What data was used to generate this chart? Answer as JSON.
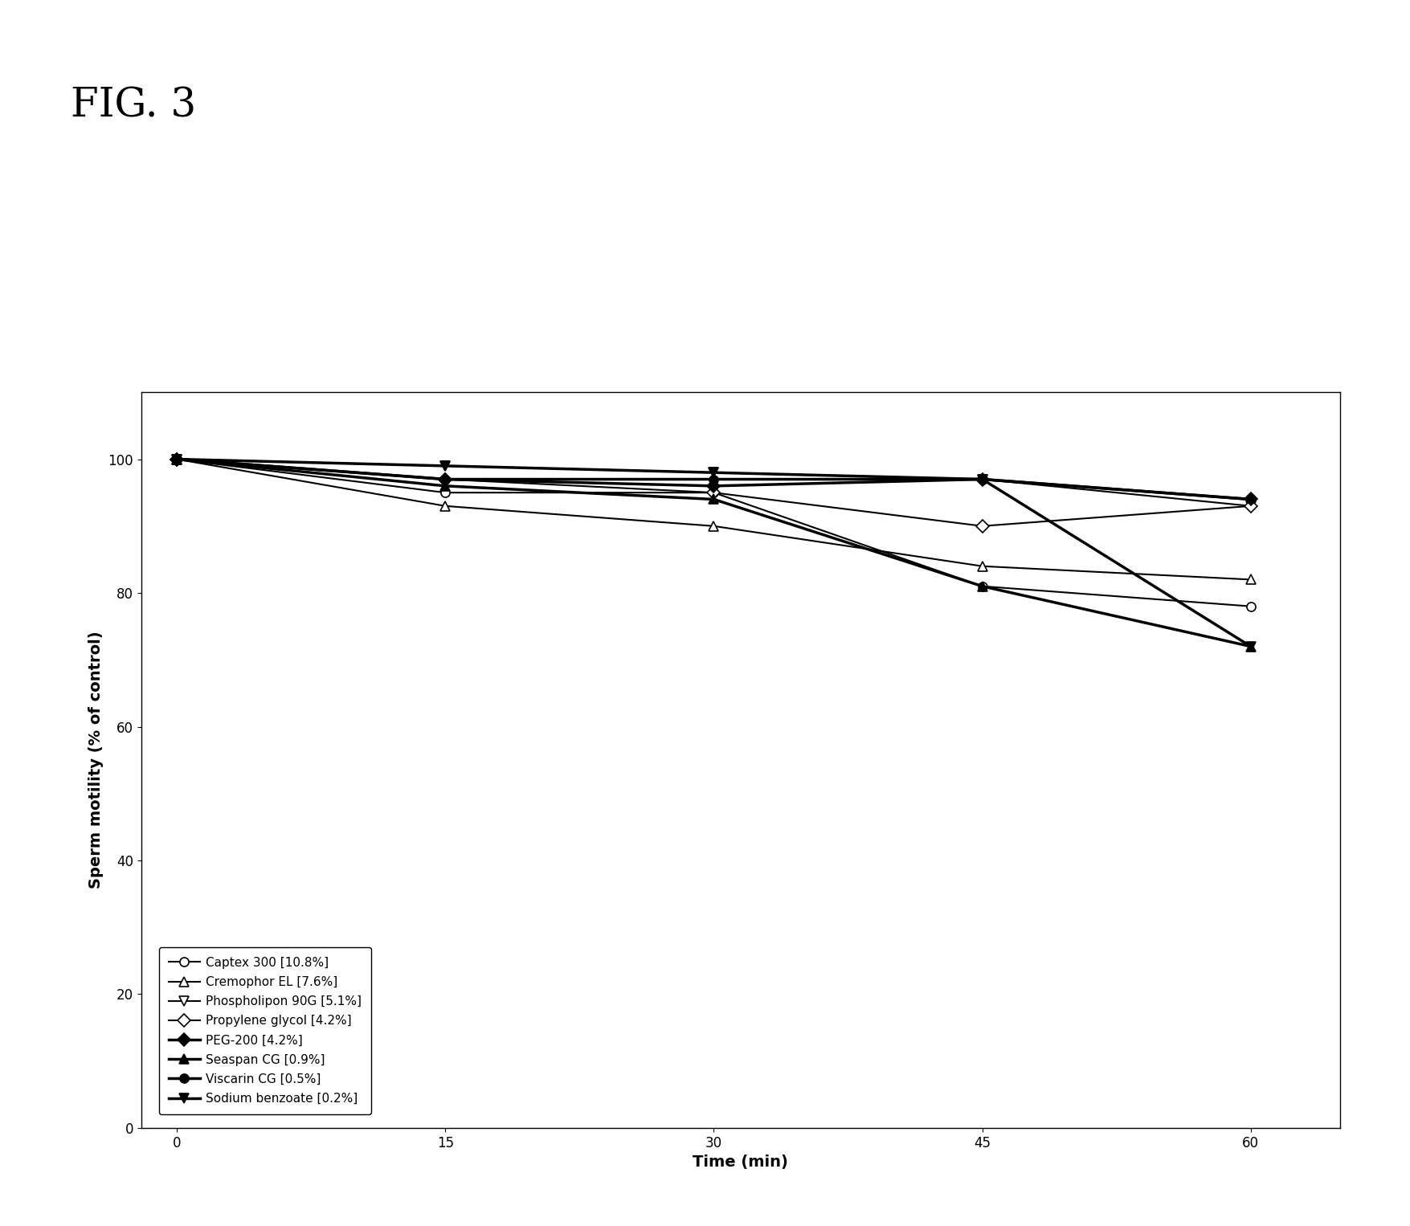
{
  "title": "FIG. 3",
  "xlabel": "Time (min)",
  "ylabel": "Sperm motility (% of control)",
  "x": [
    0,
    15,
    30,
    45,
    60
  ],
  "series": [
    {
      "label": "Captex 300 [10.8%]",
      "y": [
        100,
        95,
        95,
        81,
        78
      ],
      "marker": "o",
      "filled": false,
      "linewidth": 1.5
    },
    {
      "label": "Cremophor EL [7.6%]",
      "y": [
        100,
        93,
        90,
        84,
        82
      ],
      "marker": "^",
      "filled": false,
      "linewidth": 1.5
    },
    {
      "label": "Phospholipon 90G [5.1%]",
      "y": [
        100,
        99,
        98,
        97,
        93
      ],
      "marker": "v",
      "filled": false,
      "linewidth": 1.5
    },
    {
      "label": "Propylene glycol [4.2%]",
      "y": [
        100,
        97,
        95,
        90,
        93
      ],
      "marker": "D",
      "filled": false,
      "linewidth": 1.5
    },
    {
      "label": "PEG-200 [4.2%]",
      "y": [
        100,
        97,
        96,
        97,
        94
      ],
      "marker": "D",
      "filled": true,
      "linewidth": 2.5
    },
    {
      "label": "Seaspan CG [0.9%]",
      "y": [
        100,
        96,
        94,
        81,
        72
      ],
      "marker": "^",
      "filled": true,
      "linewidth": 2.5
    },
    {
      "label": "Viscarin CG [0.5%]",
      "y": [
        100,
        97,
        97,
        97,
        94
      ],
      "marker": "o",
      "filled": true,
      "linewidth": 2.5
    },
    {
      "label": "Sodium benzoate [0.2%]",
      "y": [
        100,
        99,
        98,
        97,
        72
      ],
      "marker": "v",
      "filled": true,
      "linewidth": 2.5
    }
  ],
  "xlim": [
    -2,
    65
  ],
  "ylim": [
    0,
    110
  ],
  "yticks": [
    0,
    20,
    40,
    60,
    80,
    100
  ],
  "xticks": [
    0,
    15,
    30,
    45,
    60
  ],
  "figsize": [
    17.56,
    15.26
  ],
  "dpi": 100,
  "background_color": "#ffffff",
  "text_color": "#000000",
  "marker_size": 8,
  "title_fontsize": 36,
  "axis_label_fontsize": 14,
  "tick_fontsize": 12,
  "legend_fontsize": 11
}
